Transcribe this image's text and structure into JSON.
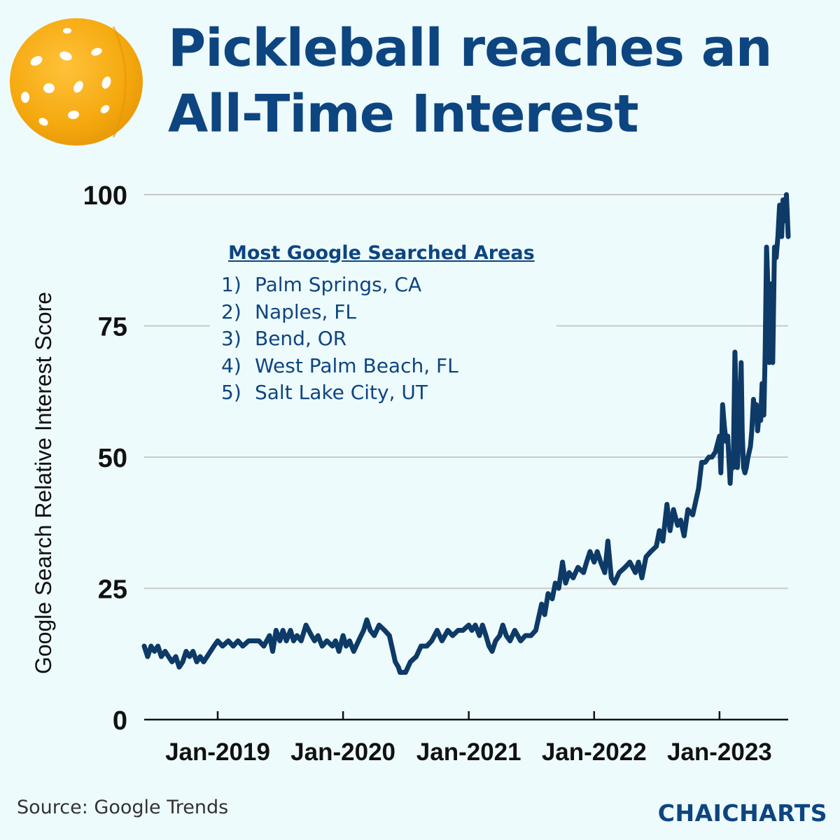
{
  "title_lines": [
    "Pickleball reaches an",
    "All-Time Interest"
  ],
  "source": "Source: Google Trends",
  "brand": "CHAICHARTS",
  "icons": {
    "logo": "pickleball-icon"
  },
  "colors": {
    "background": "#eefbfd",
    "title": "#0d4580",
    "line": "#0d3a66",
    "ball": "#f5a90f"
  },
  "legend": {
    "title": "Most Google Searched Areas",
    "items": [
      {
        "num": "1)",
        "name": "Palm Springs, CA"
      },
      {
        "num": "2)",
        "name": "Naples, FL"
      },
      {
        "num": "3)",
        "name": "Bend, OR"
      },
      {
        "num": "4)",
        "name": "West Palm Beach, FL"
      },
      {
        "num": "5)",
        "name": "Salt Lake City, UT"
      }
    ]
  },
  "chart_data": {
    "type": "line",
    "ylabel": "Google Search Relative Interest Score",
    "xlabel": "",
    "ylim": [
      0,
      100
    ],
    "yticks": [
      0,
      25,
      50,
      75,
      100
    ],
    "xlim": [
      "2018-06-01",
      "2023-07-20"
    ],
    "xticks": [
      {
        "date": "2019-01-01",
        "label": "Jan-2019"
      },
      {
        "date": "2020-01-01",
        "label": "Jan-2020"
      },
      {
        "date": "2021-01-01",
        "label": "Jan-2021"
      },
      {
        "date": "2022-01-01",
        "label": "Jan-2022"
      },
      {
        "date": "2023-01-01",
        "label": "Jan-2023"
      }
    ],
    "grid": "horizontal",
    "series": [
      {
        "points": [
          [
            "2018-06-01",
            14
          ],
          [
            "2018-06-11",
            12
          ],
          [
            "2018-06-21",
            14
          ],
          [
            "2018-07-01",
            13
          ],
          [
            "2018-07-11",
            14
          ],
          [
            "2018-07-21",
            12
          ],
          [
            "2018-08-01",
            13
          ],
          [
            "2018-08-11",
            12
          ],
          [
            "2018-08-21",
            11
          ],
          [
            "2018-09-01",
            12
          ],
          [
            "2018-09-11",
            10
          ],
          [
            "2018-09-21",
            11
          ],
          [
            "2018-10-01",
            13
          ],
          [
            "2018-10-11",
            12
          ],
          [
            "2018-10-21",
            13
          ],
          [
            "2018-11-01",
            11
          ],
          [
            "2018-11-11",
            12
          ],
          [
            "2018-11-21",
            11
          ],
          [
            "2018-12-01",
            12
          ],
          [
            "2018-12-11",
            13
          ],
          [
            "2018-12-21",
            14
          ],
          [
            "2019-01-01",
            15
          ],
          [
            "2019-01-15",
            14
          ],
          [
            "2019-02-01",
            15
          ],
          [
            "2019-02-15",
            14
          ],
          [
            "2019-03-01",
            15
          ],
          [
            "2019-03-15",
            14
          ],
          [
            "2019-04-01",
            15
          ],
          [
            "2019-04-15",
            15
          ],
          [
            "2019-05-01",
            15
          ],
          [
            "2019-05-15",
            14
          ],
          [
            "2019-06-01",
            16
          ],
          [
            "2019-06-10",
            13
          ],
          [
            "2019-06-20",
            17
          ],
          [
            "2019-07-01",
            15
          ],
          [
            "2019-07-10",
            17
          ],
          [
            "2019-07-20",
            15
          ],
          [
            "2019-08-01",
            17
          ],
          [
            "2019-08-10",
            15
          ],
          [
            "2019-08-20",
            16
          ],
          [
            "2019-09-01",
            15
          ],
          [
            "2019-09-15",
            18
          ],
          [
            "2019-10-01",
            16
          ],
          [
            "2019-10-10",
            15
          ],
          [
            "2019-10-20",
            16
          ],
          [
            "2019-11-01",
            14
          ],
          [
            "2019-11-15",
            15
          ],
          [
            "2019-12-01",
            14
          ],
          [
            "2019-12-10",
            15
          ],
          [
            "2019-12-20",
            13
          ],
          [
            "2020-01-01",
            16
          ],
          [
            "2020-01-10",
            14
          ],
          [
            "2020-01-20",
            15
          ],
          [
            "2020-02-01",
            13
          ],
          [
            "2020-02-15",
            15
          ],
          [
            "2020-03-01",
            17
          ],
          [
            "2020-03-10",
            19
          ],
          [
            "2020-03-20",
            17
          ],
          [
            "2020-04-01",
            16
          ],
          [
            "2020-04-15",
            18
          ],
          [
            "2020-05-01",
            17
          ],
          [
            "2020-05-15",
            16
          ],
          [
            "2020-06-01",
            11
          ],
          [
            "2020-06-10",
            10
          ],
          [
            "2020-06-15",
            9
          ],
          [
            "2020-07-01",
            9
          ],
          [
            "2020-07-15",
            11
          ],
          [
            "2020-08-01",
            12
          ],
          [
            "2020-08-15",
            14
          ],
          [
            "2020-09-01",
            14
          ],
          [
            "2020-09-15",
            15
          ],
          [
            "2020-10-01",
            17
          ],
          [
            "2020-10-15",
            15
          ],
          [
            "2020-11-01",
            17
          ],
          [
            "2020-11-15",
            16
          ],
          [
            "2020-12-01",
            17
          ],
          [
            "2020-12-15",
            17
          ],
          [
            "2021-01-01",
            18
          ],
          [
            "2021-01-10",
            17
          ],
          [
            "2021-01-20",
            18
          ],
          [
            "2021-02-01",
            16
          ],
          [
            "2021-02-10",
            18
          ],
          [
            "2021-02-20",
            16
          ],
          [
            "2021-03-01",
            14
          ],
          [
            "2021-03-10",
            13
          ],
          [
            "2021-03-20",
            15
          ],
          [
            "2021-04-01",
            16
          ],
          [
            "2021-04-10",
            18
          ],
          [
            "2021-04-20",
            16
          ],
          [
            "2021-05-01",
            15
          ],
          [
            "2021-05-15",
            17
          ],
          [
            "2021-06-01",
            15
          ],
          [
            "2021-06-15",
            16
          ],
          [
            "2021-07-01",
            16
          ],
          [
            "2021-07-15",
            17
          ],
          [
            "2021-08-01",
            22
          ],
          [
            "2021-08-10",
            20
          ],
          [
            "2021-08-20",
            24
          ],
          [
            "2021-09-01",
            23
          ],
          [
            "2021-09-10",
            26
          ],
          [
            "2021-09-20",
            25
          ],
          [
            "2021-10-01",
            30
          ],
          [
            "2021-10-10",
            26
          ],
          [
            "2021-10-20",
            28
          ],
          [
            "2021-11-01",
            27
          ],
          [
            "2021-11-15",
            29
          ],
          [
            "2021-12-01",
            28
          ],
          [
            "2021-12-10",
            30
          ],
          [
            "2021-12-20",
            32
          ],
          [
            "2022-01-01",
            30
          ],
          [
            "2022-01-10",
            32
          ],
          [
            "2022-01-20",
            30
          ],
          [
            "2022-02-01",
            28
          ],
          [
            "2022-02-10",
            34
          ],
          [
            "2022-02-20",
            27
          ],
          [
            "2022-03-01",
            26
          ],
          [
            "2022-03-15",
            28
          ],
          [
            "2022-04-01",
            29
          ],
          [
            "2022-04-15",
            30
          ],
          [
            "2022-05-01",
            28
          ],
          [
            "2022-05-10",
            30
          ],
          [
            "2022-05-20",
            27
          ],
          [
            "2022-06-01",
            31
          ],
          [
            "2022-06-15",
            32
          ],
          [
            "2022-07-01",
            33
          ],
          [
            "2022-07-10",
            36
          ],
          [
            "2022-07-20",
            34
          ],
          [
            "2022-08-01",
            41
          ],
          [
            "2022-08-10",
            36
          ],
          [
            "2022-08-20",
            40
          ],
          [
            "2022-09-01",
            37
          ],
          [
            "2022-09-10",
            38
          ],
          [
            "2022-09-20",
            35
          ],
          [
            "2022-10-01",
            40
          ],
          [
            "2022-10-15",
            39
          ],
          [
            "2022-11-01",
            44
          ],
          [
            "2022-11-10",
            49
          ],
          [
            "2022-11-20",
            49
          ],
          [
            "2022-12-01",
            50
          ],
          [
            "2022-12-10",
            50
          ],
          [
            "2022-12-20",
            51
          ],
          [
            "2023-01-01",
            54
          ],
          [
            "2023-01-05",
            47
          ],
          [
            "2023-01-10",
            60
          ],
          [
            "2023-01-15",
            56
          ],
          [
            "2023-01-20",
            53
          ],
          [
            "2023-01-25",
            54
          ],
          [
            "2023-02-01",
            45
          ],
          [
            "2023-02-05",
            50
          ],
          [
            "2023-02-10",
            48
          ],
          [
            "2023-02-15",
            70
          ],
          [
            "2023-02-18",
            62
          ],
          [
            "2023-02-22",
            48
          ],
          [
            "2023-02-25",
            52
          ],
          [
            "2023-03-01",
            58
          ],
          [
            "2023-03-05",
            68
          ],
          [
            "2023-03-08",
            55
          ],
          [
            "2023-03-12",
            48
          ],
          [
            "2023-03-16",
            47
          ],
          [
            "2023-03-20",
            48
          ],
          [
            "2023-03-25",
            50
          ],
          [
            "2023-04-01",
            52
          ],
          [
            "2023-04-05",
            55
          ],
          [
            "2023-04-10",
            61
          ],
          [
            "2023-04-14",
            58
          ],
          [
            "2023-04-18",
            60
          ],
          [
            "2023-04-22",
            55
          ],
          [
            "2023-04-26",
            58
          ],
          [
            "2023-05-01",
            57
          ],
          [
            "2023-05-05",
            64
          ],
          [
            "2023-05-10",
            58
          ],
          [
            "2023-05-14",
            70
          ],
          [
            "2023-05-18",
            90
          ],
          [
            "2023-05-22",
            82
          ],
          [
            "2023-05-26",
            68
          ],
          [
            "2023-06-01",
            83
          ],
          [
            "2023-06-05",
            68
          ],
          [
            "2023-06-10",
            90
          ],
          [
            "2023-06-15",
            88
          ],
          [
            "2023-06-20",
            92
          ],
          [
            "2023-06-25",
            98
          ],
          [
            "2023-07-01",
            92
          ],
          [
            "2023-07-05",
            99
          ],
          [
            "2023-07-10",
            95
          ],
          [
            "2023-07-15",
            100
          ],
          [
            "2023-07-20",
            92
          ]
        ]
      }
    ]
  }
}
